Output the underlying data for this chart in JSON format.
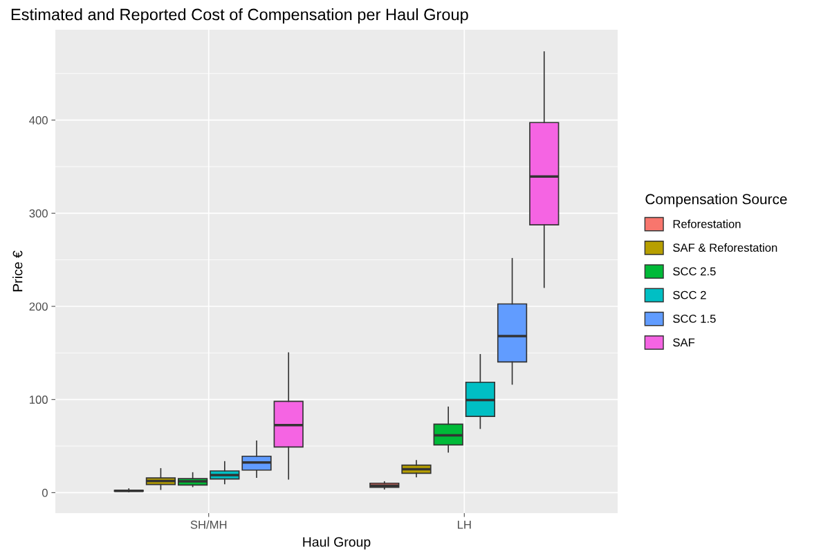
{
  "chart_data": {
    "type": "box",
    "title": "Estimated and Reported Cost of Compensation per Haul Group",
    "xlabel": "Haul Group",
    "ylabel": "Price €",
    "legend_title": "Compensation Source",
    "categories": [
      "SH/MH",
      "LH"
    ],
    "ylim": [
      -22,
      497
    ],
    "yticks": [
      0,
      100,
      200,
      300,
      400
    ],
    "grid": true,
    "legend": "right",
    "series": [
      {
        "name": "Reforestation",
        "color": "#f8766d",
        "boxes": [
          {
            "low": 1,
            "q1": 1.5,
            "median": 2,
            "q3": 2.5,
            "high": 4
          },
          {
            "low": 4,
            "q1": 5.8,
            "median": 7.5,
            "q3": 10.1,
            "high": 11.6
          }
        ]
      },
      {
        "name": "SAF & Reforestation",
        "color": "#b79f00",
        "boxes": [
          {
            "low": 3.5,
            "q1": 8.7,
            "median": 12.6,
            "q3": 15.8,
            "high": 25.7
          },
          {
            "low": 17.1,
            "q1": 20.8,
            "median": 25.2,
            "q3": 29.5,
            "high": 34.4
          }
        ]
      },
      {
        "name": "SCC 2.5",
        "color": "#00ba38",
        "boxes": [
          {
            "low": 6.5,
            "q1": 8.2,
            "median": 12.1,
            "q3": 15,
            "high": 21.3
          },
          {
            "low": 43.6,
            "q1": 51.2,
            "median": 61.6,
            "q3": 73.5,
            "high": 91.8
          }
        ]
      },
      {
        "name": "SCC 2",
        "color": "#00bfc4",
        "boxes": [
          {
            "low": 9.6,
            "q1": 14.6,
            "median": 18.8,
            "q3": 23.3,
            "high": 33.2
          },
          {
            "low": 69,
            "q1": 81.9,
            "median": 99.4,
            "q3": 118.5,
            "high": 148.2
          }
        ]
      },
      {
        "name": "SCC 1.5",
        "color": "#619cff",
        "boxes": [
          {
            "low": 16.5,
            "q1": 24.2,
            "median": 32.4,
            "q3": 39.1,
            "high": 55.4
          },
          {
            "low": 116.5,
            "q1": 140.3,
            "median": 168,
            "q3": 202.6,
            "high": 251.3
          }
        ]
      },
      {
        "name": "SAF",
        "color": "#f564e3",
        "boxes": [
          {
            "low": 14.6,
            "q1": 49,
            "median": 72.5,
            "q3": 98,
            "high": 150
          },
          {
            "low": 220.4,
            "q1": 287.5,
            "median": 339.4,
            "q3": 397.3,
            "high": 473.2
          }
        ]
      }
    ]
  }
}
